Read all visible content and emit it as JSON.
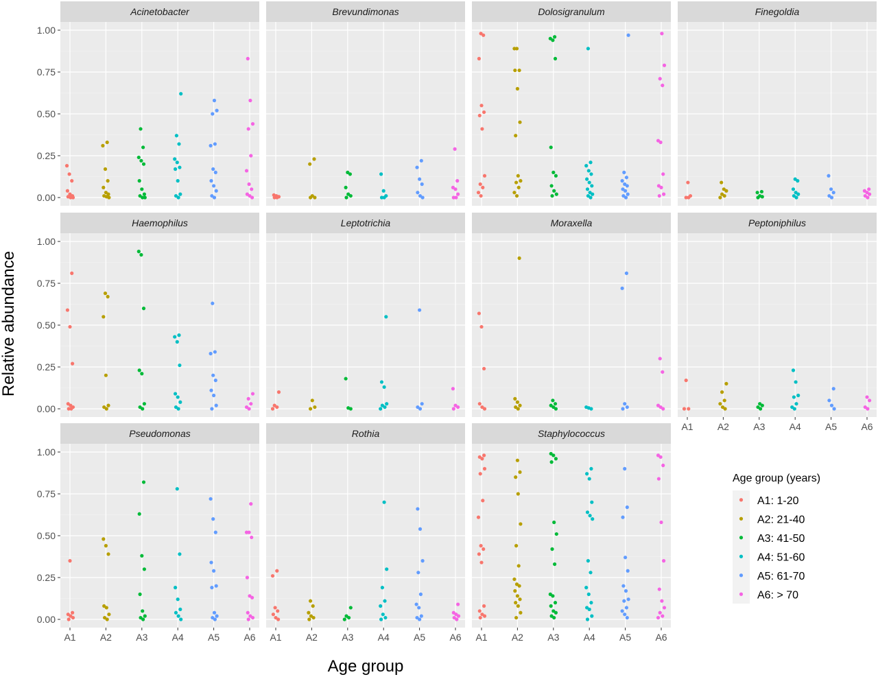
{
  "chart_data": {
    "type": "scatter",
    "xlabel": "Age group",
    "ylabel": "Relative abundance",
    "categories": [
      "A1",
      "A2",
      "A3",
      "A4",
      "A5",
      "A6"
    ],
    "ylim": [
      0,
      1
    ],
    "yticks": [
      "0.00",
      "0.25",
      "0.50",
      "0.75",
      "1.00"
    ],
    "grid": true,
    "legend": {
      "title": "Age group (years)",
      "placement": "bottom-right",
      "entries": [
        {
          "key": "A1",
          "label": "A1:  1-20",
          "color": "#F8766D"
        },
        {
          "key": "A2",
          "label": "A2:  21-40",
          "color": "#B79F00"
        },
        {
          "key": "A3",
          "label": "A3:  41-50",
          "color": "#00BA38"
        },
        {
          "key": "A4",
          "label": "A4:  51-60",
          "color": "#00BFC4"
        },
        {
          "key": "A5",
          "label": "A5:  61-70",
          "color": "#619CFF"
        },
        {
          "key": "A6",
          "label": "A6:  > 70",
          "color": "#F564E3"
        }
      ]
    },
    "panels": [
      {
        "name": "Acinetobacter",
        "values": {
          "A1": [
            0.19,
            0.14,
            0.1,
            0.04,
            0.02,
            0.01,
            0.005,
            0,
            0
          ],
          "A2": [
            0.33,
            0.31,
            0.17,
            0.1,
            0.06,
            0.03,
            0.02,
            0.01,
            0.005,
            0
          ],
          "A3": [
            0.41,
            0.3,
            0.24,
            0.22,
            0.2,
            0.1,
            0.05,
            0.02,
            0.01,
            0,
            0
          ],
          "A4": [
            0.62,
            0.37,
            0.32,
            0.23,
            0.21,
            0.18,
            0.17,
            0.1,
            0.02,
            0.01,
            0
          ],
          "A5": [
            0.58,
            0.52,
            0.5,
            0.32,
            0.31,
            0.17,
            0.15,
            0.1,
            0.07,
            0.04,
            0.01,
            0
          ],
          "A6": [
            0.83,
            0.58,
            0.44,
            0.41,
            0.25,
            0.16,
            0.08,
            0.05,
            0.02,
            0.01,
            0
          ]
        }
      },
      {
        "name": "Brevundimonas",
        "values": {
          "A1": [
            0.015,
            0.01,
            0.005,
            0,
            0
          ],
          "A2": [
            0.23,
            0.2,
            0.01,
            0,
            0
          ],
          "A3": [
            0.15,
            0.14,
            0.06,
            0.02,
            0.01,
            0
          ],
          "A4": [
            0.14,
            0.04,
            0.01,
            0,
            0
          ],
          "A5": [
            0.22,
            0.18,
            0.11,
            0.08,
            0.03,
            0.01,
            0
          ],
          "A6": [
            0.29,
            0.1,
            0.06,
            0.05,
            0.02,
            0,
            0
          ]
        }
      },
      {
        "name": "Dolosigranulum",
        "values": {
          "A1": [
            0.98,
            0.97,
            0.83,
            0.55,
            0.51,
            0.49,
            0.41,
            0.13,
            0.08,
            0.06,
            0.03,
            0.01
          ],
          "A2": [
            0.89,
            0.89,
            0.76,
            0.76,
            0.65,
            0.45,
            0.37,
            0.13,
            0.1,
            0.09,
            0.06,
            0.03,
            0.01
          ],
          "A3": [
            0.96,
            0.95,
            0.94,
            0.83,
            0.3,
            0.15,
            0.13,
            0.07,
            0.04,
            0.02,
            0.01
          ],
          "A4": [
            0.89,
            0.21,
            0.19,
            0.16,
            0.14,
            0.11,
            0.09,
            0.07,
            0.05,
            0.03,
            0.02,
            0.01,
            0
          ],
          "A5": [
            0.97,
            0.15,
            0.12,
            0.1,
            0.08,
            0.07,
            0.05,
            0.04,
            0.02,
            0.01,
            0
          ],
          "A6": [
            0.98,
            0.79,
            0.71,
            0.67,
            0.34,
            0.33,
            0.14,
            0.07,
            0.06,
            0.02,
            0.01
          ]
        }
      },
      {
        "name": "Finegoldia",
        "values": {
          "A1": [
            0.09,
            0.01,
            0,
            0
          ],
          "A2": [
            0.09,
            0.05,
            0.04,
            0.02,
            0.01,
            0
          ],
          "A3": [
            0.035,
            0.03,
            0.01,
            0.005,
            0
          ],
          "A4": [
            0.11,
            0.1,
            0.05,
            0.03,
            0.02,
            0.01,
            0
          ],
          "A5": [
            0.13,
            0.05,
            0.03,
            0.01,
            0
          ],
          "A6": [
            0.05,
            0.04,
            0.03,
            0.02,
            0.01,
            0
          ]
        }
      },
      {
        "name": "Haemophilus",
        "values": {
          "A1": [
            0.81,
            0.59,
            0.49,
            0.27,
            0.03,
            0.02,
            0.01,
            0,
            0
          ],
          "A2": [
            0.69,
            0.67,
            0.55,
            0.2,
            0.02,
            0.01,
            0
          ],
          "A3": [
            0.94,
            0.92,
            0.6,
            0.23,
            0.21,
            0.03,
            0.01,
            0
          ],
          "A4": [
            0.44,
            0.43,
            0.4,
            0.26,
            0.09,
            0.07,
            0.04,
            0.01,
            0
          ],
          "A5": [
            0.63,
            0.34,
            0.33,
            0.2,
            0.17,
            0.11,
            0.08,
            0.02,
            0
          ],
          "A6": [
            0.09,
            0.06,
            0.03,
            0.01,
            0
          ]
        }
      },
      {
        "name": "Leptotrichia",
        "values": {
          "A1": [
            0.1,
            0.02,
            0.01,
            0
          ],
          "A2": [
            0.05,
            0.01,
            0
          ],
          "A3": [
            0.18,
            0.005,
            0
          ],
          "A4": [
            0.55,
            0.16,
            0.13,
            0.03,
            0.02,
            0.01,
            0
          ],
          "A5": [
            0.59,
            0.03,
            0.01,
            0
          ],
          "A6": [
            0.12,
            0.02,
            0.01,
            0
          ]
        }
      },
      {
        "name": "Moraxella",
        "values": {
          "A1": [
            0.57,
            0.49,
            0.24,
            0.03,
            0.01,
            0
          ],
          "A2": [
            0.9,
            0.06,
            0.04,
            0.02,
            0.01,
            0
          ],
          "A3": [
            0.05,
            0.03,
            0.02,
            0.01,
            0
          ],
          "A4": [
            0.01,
            0.005,
            0
          ],
          "A5": [
            0.81,
            0.72,
            0.03,
            0.01,
            0
          ],
          "A6": [
            0.3,
            0.22,
            0.02,
            0.01,
            0
          ]
        }
      },
      {
        "name": "Peptoniphilus",
        "values": {
          "A1": [
            0.17,
            0,
            0
          ],
          "A2": [
            0.15,
            0.1,
            0.05,
            0.03,
            0.01,
            0
          ],
          "A3": [
            0.03,
            0.02,
            0.01,
            0
          ],
          "A4": [
            0.23,
            0.16,
            0.08,
            0.07,
            0.03,
            0.01,
            0
          ],
          "A5": [
            0.12,
            0.05,
            0.02,
            0
          ],
          "A6": [
            0.07,
            0.05,
            0.01,
            0
          ]
        }
      },
      {
        "name": "Pseudomonas",
        "values": {
          "A1": [
            0.35,
            0.04,
            0.03,
            0.02,
            0.01,
            0
          ],
          "A2": [
            0.48,
            0.44,
            0.39,
            0.08,
            0.07,
            0.03,
            0.01,
            0
          ],
          "A3": [
            0.82,
            0.63,
            0.38,
            0.3,
            0.15,
            0.05,
            0.02,
            0.01,
            0
          ],
          "A4": [
            0.78,
            0.39,
            0.19,
            0.12,
            0.06,
            0.04,
            0.02,
            0
          ],
          "A5": [
            0.72,
            0.6,
            0.52,
            0.34,
            0.29,
            0.2,
            0.19,
            0.04,
            0.02,
            0.01,
            0
          ],
          "A6": [
            0.69,
            0.52,
            0.52,
            0.49,
            0.25,
            0.14,
            0.13,
            0.04,
            0.02,
            0.01,
            0
          ]
        }
      },
      {
        "name": "Rothia",
        "values": {
          "A1": [
            0.29,
            0.26,
            0.07,
            0.05,
            0.03,
            0.01,
            0
          ],
          "A2": [
            0.11,
            0.08,
            0.04,
            0.02,
            0.01,
            0
          ],
          "A3": [
            0.07,
            0.02,
            0.01,
            0
          ],
          "A4": [
            0.7,
            0.3,
            0.19,
            0.11,
            0.08,
            0.03,
            0.01,
            0
          ],
          "A5": [
            0.66,
            0.54,
            0.35,
            0.28,
            0.15,
            0.09,
            0.07,
            0.02,
            0.01,
            0
          ],
          "A6": [
            0.09,
            0.04,
            0.03,
            0.02,
            0.01,
            0
          ]
        }
      },
      {
        "name": "Staphylococcus",
        "values": {
          "A1": [
            0.98,
            0.97,
            0.96,
            0.9,
            0.87,
            0.71,
            0.61,
            0.44,
            0.42,
            0.39,
            0.34,
            0.08,
            0.05,
            0.03,
            0.02,
            0.01
          ],
          "A2": [
            0.95,
            0.88,
            0.85,
            0.75,
            0.57,
            0.44,
            0.32,
            0.24,
            0.21,
            0.2,
            0.17,
            0.14,
            0.12,
            0.1,
            0.08,
            0.04,
            0.01
          ],
          "A3": [
            0.99,
            0.98,
            0.96,
            0.94,
            0.58,
            0.51,
            0.42,
            0.33,
            0.15,
            0.14,
            0.1,
            0.08,
            0.05,
            0.04,
            0.02,
            0.01
          ],
          "A4": [
            0.9,
            0.87,
            0.84,
            0.7,
            0.64,
            0.62,
            0.6,
            0.35,
            0.28,
            0.19,
            0.15,
            0.1,
            0.07,
            0.06,
            0.02,
            0
          ],
          "A5": [
            0.9,
            0.67,
            0.61,
            0.37,
            0.29,
            0.2,
            0.17,
            0.12,
            0.11,
            0.07,
            0.05,
            0.03,
            0.01
          ],
          "A6": [
            0.98,
            0.97,
            0.92,
            0.84,
            0.58,
            0.35,
            0.18,
            0.11,
            0.07,
            0.04,
            0.02,
            0.01
          ]
        }
      }
    ]
  }
}
